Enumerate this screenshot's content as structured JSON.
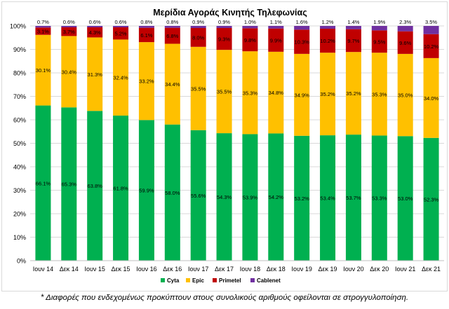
{
  "chart_data": {
    "type": "bar",
    "stacked": true,
    "title": "Μερίδια Αγοράς Κινητής Τηλεφωνίας",
    "categories": [
      "Ιουν 14",
      "Δεκ 14",
      "Ιουν 15",
      "Δεκ 15",
      "Ιουν 16",
      "Δεκ 16",
      "Ιουν 17",
      "Δεκ 17",
      "Ιουν 18",
      "Δεκ 18",
      "Ιουν 19",
      "Δεκ 19",
      "Ιουν 20",
      "Δεκ 20",
      "Ιουν 21",
      "Δεκ 21"
    ],
    "series": [
      {
        "name": "Cyta",
        "color": "#00b050",
        "values": [
          66.1,
          65.3,
          63.8,
          61.8,
          59.9,
          58.0,
          55.6,
          54.3,
          53.9,
          54.2,
          53.2,
          53.4,
          53.7,
          53.3,
          53.0,
          52.3
        ]
      },
      {
        "name": "Epic",
        "color": "#ffc000",
        "values": [
          30.1,
          30.4,
          31.3,
          32.4,
          33.2,
          34.4,
          35.5,
          35.5,
          35.3,
          34.8,
          34.9,
          35.2,
          35.2,
          35.3,
          35.0,
          34.0
        ]
      },
      {
        "name": "Primetel",
        "color": "#c00000",
        "values": [
          3.1,
          3.7,
          4.3,
          5.2,
          6.1,
          6.8,
          8.0,
          9.3,
          9.8,
          9.9,
          10.3,
          10.2,
          9.7,
          9.5,
          9.6,
          10.2
        ]
      },
      {
        "name": "Cablenet",
        "color": "#7030a0",
        "values": [
          0.7,
          0.6,
          0.6,
          0.6,
          0.8,
          0.8,
          0.9,
          0.9,
          1.0,
          1.1,
          1.6,
          1.2,
          1.4,
          1.9,
          2.3,
          3.5
        ]
      }
    ],
    "data_labels": {
      "Cyta": [
        "66.1%",
        "65.3%",
        "63.8%",
        "61.8%",
        "59.9%",
        "58.0%",
        "55.6%",
        "54.3%",
        "53.9%",
        "54.2%",
        "53.2%",
        "53.4%",
        "53.7%",
        "53.3%",
        "53.0%",
        "52.3%"
      ],
      "Epic": [
        "30.1%",
        "30.4%",
        "31.3%",
        "32.4%",
        "33.2%",
        "34.4%",
        "35.5%",
        "35.5%",
        "35.3%",
        "34.8%",
        "34.9%",
        "35.2%",
        "35.2%",
        "35.3%",
        "35.0%",
        "34.0%"
      ],
      "Primetel": [
        "3.1%",
        "3.7%",
        "4.3%",
        "5.2%",
        "6.1%",
        "6.8%",
        "8.0%",
        "9.3%",
        "9.8%",
        "9.9%",
        "10.3%",
        "10.2%",
        "9.7%",
        "9.5%",
        "9.6%",
        "10.2%"
      ],
      "Cablenet": [
        "0.7%",
        "0.6%",
        "0.6%",
        "0.6%",
        "0.8%",
        "0.8%",
        "0.9%",
        "0.9%",
        "1.0%",
        "1.1%",
        "1.6%",
        "1.2%",
        "1.4%",
        "1.9%",
        "2.3%",
        "3.5%"
      ]
    },
    "yticks": [
      "0%",
      "10%",
      "20%",
      "30%",
      "40%",
      "50%",
      "60%",
      "70%",
      "80%",
      "90%",
      "100%"
    ],
    "ylim": [
      0,
      100
    ],
    "grid": true,
    "legend": "bottom"
  },
  "footnote": "* Διαφορές που ενδεχομένως προκύπτουν στους συνολικούς αριθμούς οφείλονται σε στρογγυλοποίηση."
}
